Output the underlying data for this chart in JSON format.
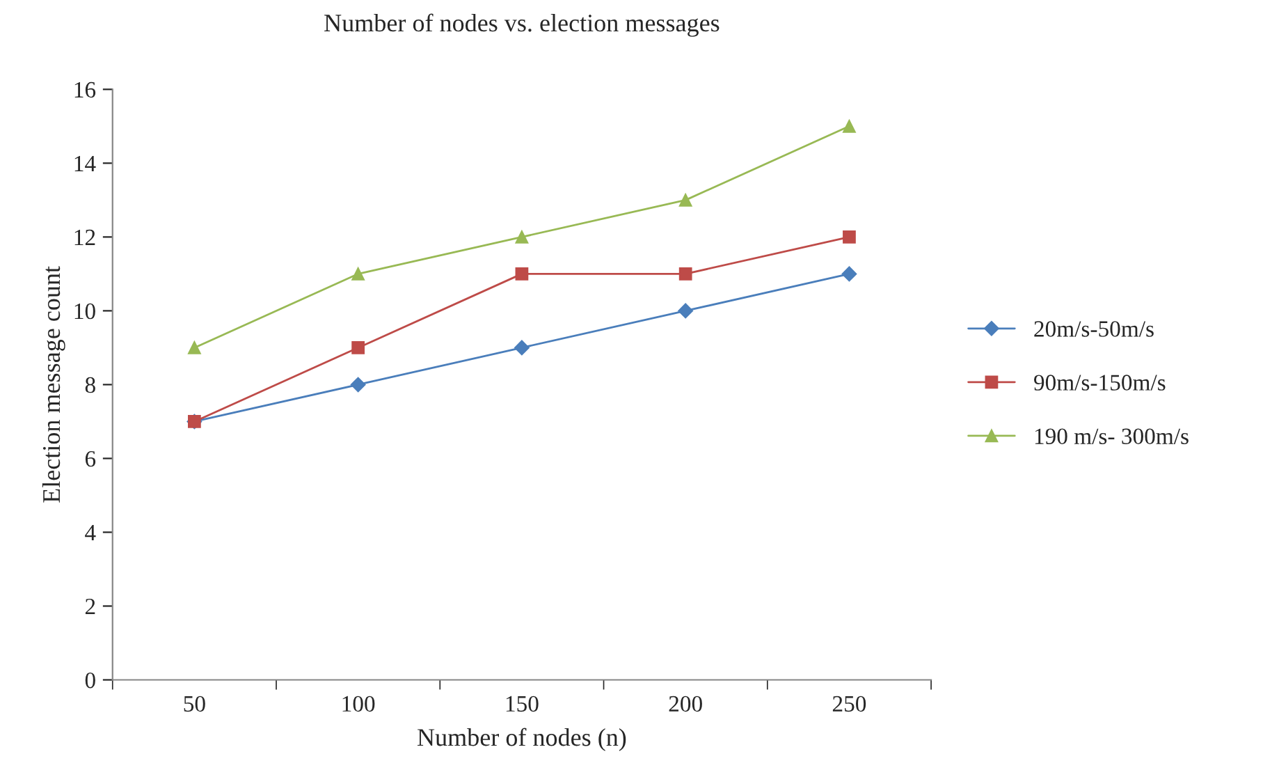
{
  "chart_data": {
    "type": "line",
    "title": "Number of nodes vs. election messages",
    "xlabel": "Number of nodes (n)",
    "ylabel": "Election message count",
    "categories": [
      "50",
      "100",
      "150",
      "200",
      "250"
    ],
    "series": [
      {
        "name": "20m/s-50m/s",
        "color": "#4a7ebb",
        "marker": "diamond",
        "values": [
          7,
          8,
          9,
          10,
          11
        ]
      },
      {
        "name": "90m/s-150m/s",
        "color": "#be4b48",
        "marker": "square",
        "values": [
          7,
          9,
          11,
          11,
          12
        ]
      },
      {
        "name": "190 m/s- 300m/s",
        "color": "#98b954",
        "marker": "triangle",
        "values": [
          9,
          11,
          12,
          13,
          15
        ]
      }
    ],
    "ylim": [
      0,
      16
    ],
    "yticks": [
      0,
      2,
      4,
      6,
      8,
      10,
      12,
      14,
      16
    ],
    "grid": false,
    "legend": "right"
  }
}
